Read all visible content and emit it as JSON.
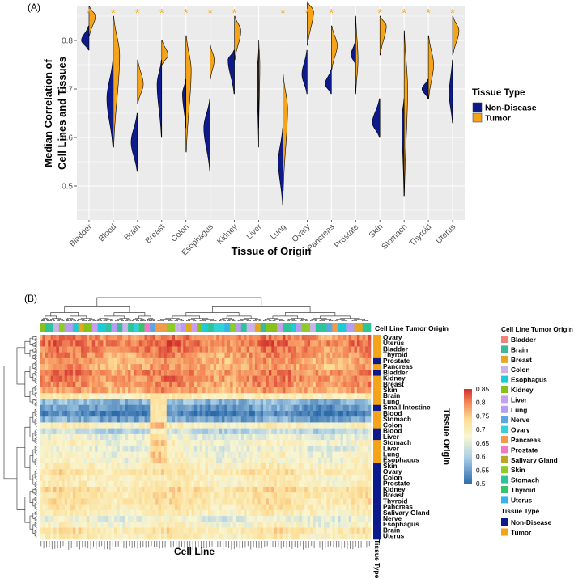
{
  "chart_data": [
    {
      "panel": "(A)",
      "type": "split-violin",
      "xlabel": "Tissue of Origin",
      "ylabel_lines": [
        "Median Correlation of",
        "Cell Lines and Tissues"
      ],
      "ylim": [
        0.43,
        0.87
      ],
      "yticks": [
        0.5,
        0.6,
        0.7,
        0.8
      ],
      "grid": true,
      "legend": {
        "title": "Tissue Type",
        "position": "right",
        "entries": [
          {
            "name": "Non-Disease",
            "color": "#0d1a8c"
          },
          {
            "name": "Tumor",
            "color": "#f5a318"
          }
        ]
      },
      "significance_marker": "*",
      "categories": [
        "Bladder",
        "Blood",
        "Brain",
        "Breast",
        "Colon",
        "Esophagus",
        "Kidney",
        "Liver",
        "Lung",
        "Ovary",
        "Pancreas",
        "Prostate",
        "Skin",
        "Stomach",
        "Thyroid",
        "Uterus"
      ],
      "significant": [
        true,
        true,
        true,
        true,
        true,
        true,
        true,
        false,
        true,
        true,
        true,
        false,
        true,
        true,
        true,
        true
      ],
      "series": [
        {
          "name": "Non-Disease",
          "violins": [
            {
              "min": 0.78,
              "max": 0.83,
              "peak": 0.8,
              "width": 0.65
            },
            {
              "min": 0.58,
              "max": 0.76,
              "peak": 0.68,
              "width": 0.55
            },
            {
              "min": 0.53,
              "max": 0.65,
              "peak": 0.59,
              "width": 0.55
            },
            {
              "min": 0.6,
              "max": 0.76,
              "peak": 0.71,
              "width": 0.4
            },
            {
              "min": 0.62,
              "max": 0.72,
              "peak": 0.69,
              "width": 0.3
            },
            {
              "min": 0.53,
              "max": 0.68,
              "peak": 0.62,
              "width": 0.55
            },
            {
              "min": 0.69,
              "max": 0.78,
              "peak": 0.76,
              "width": 0.55
            },
            {
              "min": 0.58,
              "max": 0.78,
              "peak": 0.73,
              "width": 0.15
            },
            {
              "min": 0.46,
              "max": 0.62,
              "peak": 0.55,
              "width": 0.4
            },
            {
              "min": 0.69,
              "max": 0.78,
              "peak": 0.73,
              "width": 0.45
            },
            {
              "min": 0.69,
              "max": 0.74,
              "peak": 0.71,
              "width": 0.55
            },
            {
              "min": 0.75,
              "max": 0.8,
              "peak": 0.77,
              "width": 0.4
            },
            {
              "min": 0.6,
              "max": 0.68,
              "peak": 0.63,
              "width": 0.65
            },
            {
              "min": 0.48,
              "max": 0.68,
              "peak": 0.64,
              "width": 0.2
            },
            {
              "min": 0.68,
              "max": 0.72,
              "peak": 0.7,
              "width": 0.55
            },
            {
              "min": 0.63,
              "max": 0.76,
              "peak": 0.69,
              "width": 0.3
            }
          ]
        },
        {
          "name": "Tumor",
          "violins": [
            {
              "min": 0.81,
              "max": 0.87,
              "peak": 0.85,
              "width": 0.55
            },
            {
              "min": 0.58,
              "max": 0.85,
              "peak": 0.77,
              "width": 0.55
            },
            {
              "min": 0.67,
              "max": 0.76,
              "peak": 0.71,
              "width": 0.5
            },
            {
              "min": 0.75,
              "max": 0.8,
              "peak": 0.77,
              "width": 0.55
            },
            {
              "min": 0.57,
              "max": 0.81,
              "peak": 0.74,
              "width": 0.45
            },
            {
              "min": 0.72,
              "max": 0.79,
              "peak": 0.76,
              "width": 0.35
            },
            {
              "min": 0.76,
              "max": 0.85,
              "peak": 0.82,
              "width": 0.55
            },
            {
              "min": 0.62,
              "max": 0.8,
              "peak": 0.75,
              "width": 0.1
            },
            {
              "min": 0.49,
              "max": 0.73,
              "peak": 0.66,
              "width": 0.4
            },
            {
              "min": 0.79,
              "max": 0.88,
              "peak": 0.86,
              "width": 0.55
            },
            {
              "min": 0.74,
              "max": 0.83,
              "peak": 0.79,
              "width": 0.5
            },
            {
              "min": 0.69,
              "max": 0.85,
              "peak": 0.76,
              "width": 0.2
            },
            {
              "min": 0.77,
              "max": 0.85,
              "peak": 0.83,
              "width": 0.55
            },
            {
              "min": 0.48,
              "max": 0.82,
              "peak": 0.7,
              "width": 0.3
            },
            {
              "min": 0.68,
              "max": 0.81,
              "peak": 0.75,
              "width": 0.45
            },
            {
              "min": 0.77,
              "max": 0.85,
              "peak": 0.82,
              "width": 0.55
            }
          ]
        }
      ]
    },
    {
      "panel": "(B)",
      "type": "heatmap",
      "xlabel": "Cell Line",
      "column_annotation_label": "Cell Line Tumor Origin",
      "row_annotation_label": "Tissue Type",
      "row_axis_label": "Tissue Origin",
      "n_columns": 120,
      "rows": [
        "Ovary",
        "Uterus",
        "Bladder",
        "Thyroid",
        "Prostate",
        "Pancreas",
        "Bladder",
        "Kidney",
        "Breast",
        "Skin",
        "Brain",
        "Lung",
        "Small Intestine",
        "Blood",
        "Stomach",
        "Colon",
        "Blood",
        "Liver",
        "Stomach",
        "Liver",
        "Lung",
        "Esophagus",
        "Skin",
        "Ovary",
        "Colon",
        "Prostate",
        "Kidney",
        "Breast",
        "Thyroid",
        "Pancreas",
        "Salivary Gland",
        "Nerve",
        "Esophagus",
        "Brain",
        "Uterus"
      ],
      "row_tissue_type": [
        "Tumor",
        "Tumor",
        "Tumor",
        "Tumor",
        "Non-Disease",
        "Tumor",
        "Non-Disease",
        "Tumor",
        "Tumor",
        "Tumor",
        "Tumor",
        "Tumor",
        "Non-Disease",
        "Tumor",
        "Tumor",
        "Tumor",
        "Non-Disease",
        "Non-Disease",
        "Tumor",
        "Tumor",
        "Tumor",
        "Tumor",
        "Non-Disease",
        "Non-Disease",
        "Non-Disease",
        "Non-Disease",
        "Non-Disease",
        "Non-Disease",
        "Non-Disease",
        "Non-Disease",
        "Non-Disease",
        "Non-Disease",
        "Non-Disease",
        "Non-Disease",
        "Non-Disease"
      ],
      "row_mean_values": [
        0.8,
        0.81,
        0.8,
        0.79,
        0.78,
        0.78,
        0.8,
        0.8,
        0.79,
        0.78,
        0.7,
        0.58,
        0.55,
        0.52,
        0.56,
        0.69,
        0.62,
        0.66,
        0.68,
        0.66,
        0.68,
        0.68,
        0.7,
        0.72,
        0.7,
        0.7,
        0.73,
        0.72,
        0.72,
        0.71,
        0.7,
        0.66,
        0.68,
        0.72,
        0.7
      ],
      "special_block": {
        "from_column": 40,
        "to_column": 46
      },
      "column_groups": [
        {
          "origin": "Kidney",
          "count": 2
        },
        {
          "origin": "Stomach",
          "count": 3
        },
        {
          "origin": "Colon",
          "count": 2
        },
        {
          "origin": "Skin",
          "count": 2
        },
        {
          "origin": "Lung",
          "count": 3
        },
        {
          "origin": "Esophagus",
          "count": 2
        },
        {
          "origin": "Breast",
          "count": 2
        },
        {
          "origin": "Kidney",
          "count": 3
        },
        {
          "origin": "Liver",
          "count": 2
        },
        {
          "origin": "Esophagus",
          "count": 3
        },
        {
          "origin": "Stomach",
          "count": 2
        },
        {
          "origin": "Lung",
          "count": 2
        },
        {
          "origin": "Brain",
          "count": 2
        },
        {
          "origin": "Colon",
          "count": 2
        },
        {
          "origin": "Stomach",
          "count": 2
        },
        {
          "origin": "Ovary",
          "count": 2
        },
        {
          "origin": "Thyroid",
          "count": 2
        },
        {
          "origin": "Prostate",
          "count": 2
        },
        {
          "origin": "Nerve",
          "count": 2
        },
        {
          "origin": "Pancreas",
          "count": 4
        },
        {
          "origin": "Skin",
          "count": 3
        },
        {
          "origin": "Colon",
          "count": 2
        },
        {
          "origin": "Lung",
          "count": 2
        },
        {
          "origin": "Breast",
          "count": 2
        },
        {
          "origin": "Liver",
          "count": 2
        },
        {
          "origin": "Kidney",
          "count": 2
        },
        {
          "origin": "Esophagus",
          "count": 2
        },
        {
          "origin": "Stomach",
          "count": 2
        },
        {
          "origin": "Ovary",
          "count": 4
        },
        {
          "origin": "Uterus",
          "count": 2
        },
        {
          "origin": "Skin",
          "count": 2
        },
        {
          "origin": "Lung",
          "count": 2
        },
        {
          "origin": "Stomach",
          "count": 2
        },
        {
          "origin": "Colon",
          "count": 3
        },
        {
          "origin": "Breast",
          "count": 2
        },
        {
          "origin": "Brain",
          "count": 2
        },
        {
          "origin": "Kidney",
          "count": 4
        },
        {
          "origin": "Liver",
          "count": 2
        },
        {
          "origin": "Stomach",
          "count": 3
        },
        {
          "origin": "Esophagus",
          "count": 2
        },
        {
          "origin": "Lung",
          "count": 2
        },
        {
          "origin": "Skin",
          "count": 3
        },
        {
          "origin": "Colon",
          "count": 2
        },
        {
          "origin": "Stomach",
          "count": 4
        },
        {
          "origin": "Nerve",
          "count": 2
        },
        {
          "origin": "Pancreas",
          "count": 2
        },
        {
          "origin": "Esophagus",
          "count": 3
        },
        {
          "origin": "Lung",
          "count": 3
        },
        {
          "origin": "Breast",
          "count": 3
        },
        {
          "origin": "Stomach",
          "count": 3
        }
      ],
      "color_legend": {
        "ticks": [
          0.85,
          0.8,
          0.75,
          0.7,
          0.65,
          0.6,
          0.55,
          0.5
        ],
        "range": [
          0.5,
          0.85
        ]
      },
      "origin_legend": {
        "title": "Cell Line Tumor Origin",
        "entries": [
          {
            "name": "Bladder",
            "color": "#f08278"
          },
          {
            "name": "Brain",
            "color": "#3cb89a"
          },
          {
            "name": "Breast",
            "color": "#e3a81e"
          },
          {
            "name": "Colon",
            "color": "#c9b3e8"
          },
          {
            "name": "Esophagus",
            "color": "#1ccbd6"
          },
          {
            "name": "Kidney",
            "color": "#87c21a"
          },
          {
            "name": "Liver",
            "color": "#c89ef0"
          },
          {
            "name": "Lung",
            "color": "#b69cf2"
          },
          {
            "name": "Nerve",
            "color": "#5aa7e8"
          },
          {
            "name": "Ovary",
            "color": "#2fd3d8"
          },
          {
            "name": "Pancreas",
            "color": "#f29a4a"
          },
          {
            "name": "Prostate",
            "color": "#f07ac8"
          },
          {
            "name": "Salivary Gland",
            "color": "#b9a71f"
          },
          {
            "name": "Skin",
            "color": "#8ecb27"
          },
          {
            "name": "Stomach",
            "color": "#2ec49a"
          },
          {
            "name": "Thyroid",
            "color": "#39c36a"
          },
          {
            "name": "Uterus",
            "color": "#33b4ec"
          }
        ]
      },
      "type_legend": {
        "title": "Tissue Type",
        "entries": [
          {
            "name": "Non-Disease",
            "color": "#0d1a8c"
          },
          {
            "name": "Tumor",
            "color": "#f5a318"
          }
        ]
      }
    }
  ]
}
